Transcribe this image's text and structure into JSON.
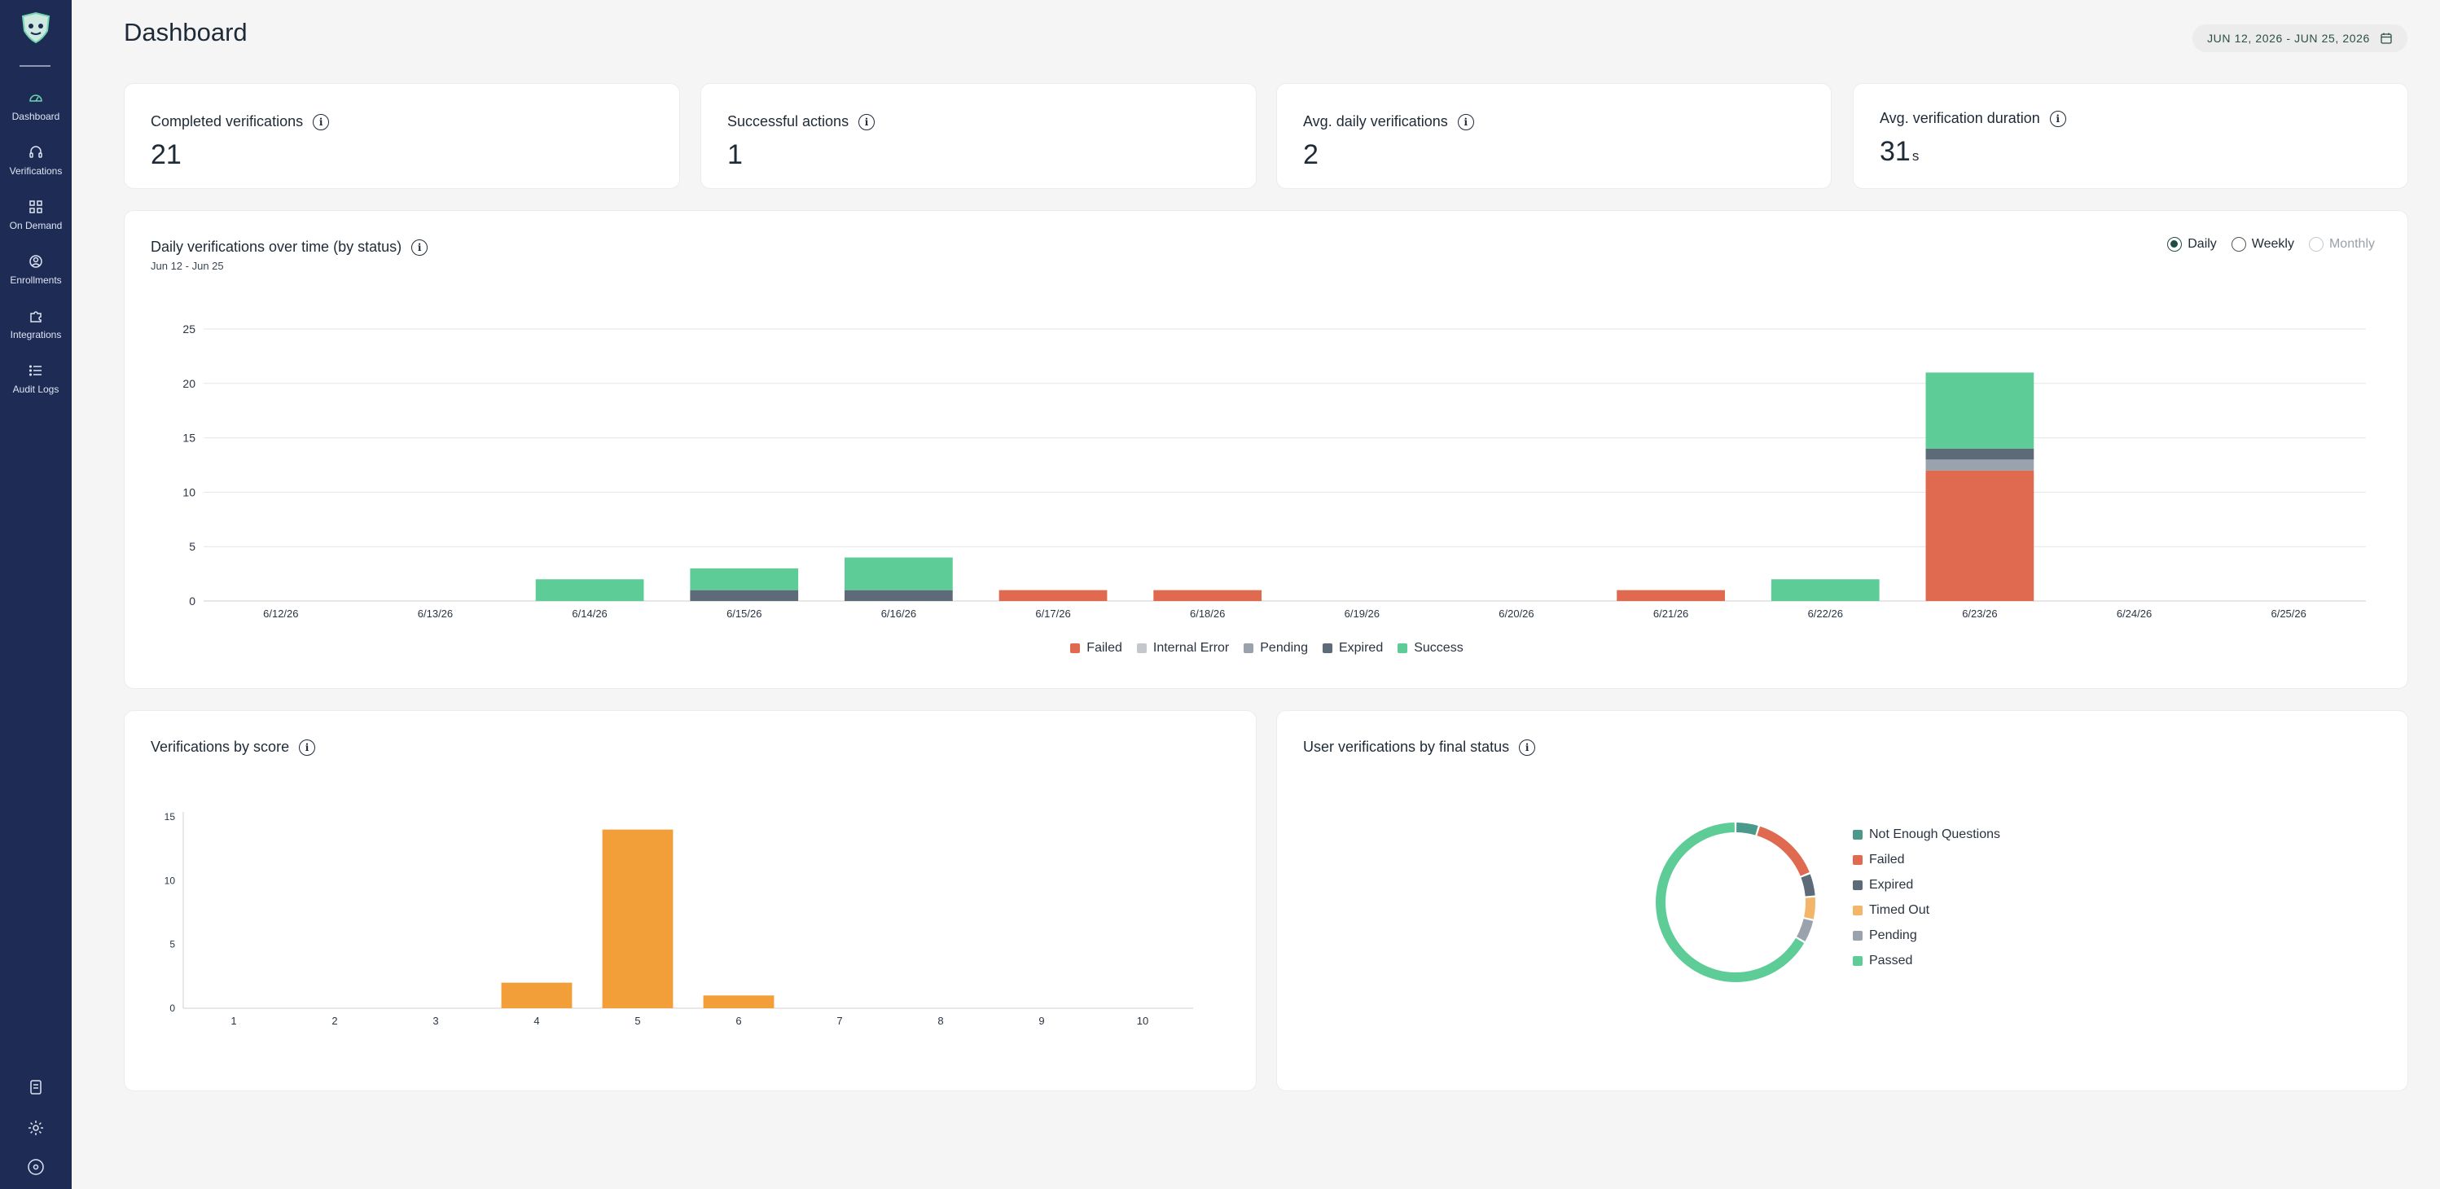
{
  "nav": {
    "items": [
      {
        "label": "Dashboard",
        "icon": "dashboard-gauge-icon"
      },
      {
        "label": "Verifications",
        "icon": "headset-icon"
      },
      {
        "label": "On Demand",
        "icon": "grid-icon"
      },
      {
        "label": "Enrollments",
        "icon": "user-circle-icon"
      },
      {
        "label": "Integrations",
        "icon": "puzzle-icon"
      },
      {
        "label": "Audit Logs",
        "icon": "list-icon"
      }
    ],
    "bottom_icons": [
      "document-icon",
      "gear-icon",
      "account-icon"
    ]
  },
  "header": {
    "title": "Dashboard",
    "date_range": "JUN 12, 2026 - JUN 25, 2026"
  },
  "kpis": [
    {
      "label": "Completed verifications",
      "value": "21",
      "unit": ""
    },
    {
      "label": "Successful actions",
      "value": "1",
      "unit": ""
    },
    {
      "label": "Avg. daily verifications",
      "value": "2",
      "unit": ""
    },
    {
      "label": "Avg. verification duration",
      "value": "31",
      "unit": "s"
    }
  ],
  "daily_chart": {
    "title": "Daily verifications over time (by status)",
    "subtitle": "Jun 12 - Jun 25",
    "period_options": [
      {
        "label": "Daily",
        "state": "checked"
      },
      {
        "label": "Weekly",
        "state": "unchecked"
      },
      {
        "label": "Monthly",
        "state": "disabled"
      }
    ]
  },
  "score_chart": {
    "title": "Verifications by score"
  },
  "status_chart": {
    "title": "User verifications by final status"
  },
  "colors": {
    "failed": "#e06a4f",
    "internal_error": "#c4c7cb",
    "pending": "#9aa3ad",
    "expired": "#5d6b78",
    "success": "#5ecc96",
    "score_bar": "#f29e39",
    "not_enough_questions": "#4a9a8c",
    "timed_out": "#f3b56a",
    "accent": "#1d2b55"
  },
  "chart_data": [
    {
      "type": "bar",
      "stacked": true,
      "categories": [
        "6/12/26",
        "6/13/26",
        "6/14/26",
        "6/15/26",
        "6/16/26",
        "6/17/26",
        "6/18/26",
        "6/19/26",
        "6/20/26",
        "6/21/26",
        "6/22/26",
        "6/23/26",
        "6/24/26",
        "6/25/26"
      ],
      "series": [
        {
          "name": "Failed",
          "color": "#e06a4f",
          "values": [
            0,
            0,
            0,
            0,
            0,
            1,
            1,
            0,
            0,
            1,
            0,
            12,
            0,
            0
          ]
        },
        {
          "name": "Internal Error",
          "color": "#c4c7cb",
          "values": [
            0,
            0,
            0,
            0,
            0,
            0,
            0,
            0,
            0,
            0,
            0,
            0,
            0,
            0
          ]
        },
        {
          "name": "Pending",
          "color": "#9aa3ad",
          "values": [
            0,
            0,
            0,
            0,
            0,
            0,
            0,
            0,
            0,
            0,
            0,
            1,
            0,
            0
          ]
        },
        {
          "name": "Expired",
          "color": "#5d6b78",
          "values": [
            0,
            0,
            0,
            1,
            1,
            0,
            0,
            0,
            0,
            0,
            0,
            1,
            0,
            0
          ]
        },
        {
          "name": "Success",
          "color": "#5ecc96",
          "values": [
            0,
            0,
            2,
            2,
            3,
            0,
            0,
            0,
            0,
            0,
            2,
            7,
            0,
            0
          ]
        }
      ],
      "ylim": [
        0,
        25
      ],
      "yticks": [
        0,
        5,
        10,
        15,
        20,
        25
      ],
      "grid": true,
      "legend": "bottom-center"
    },
    {
      "type": "bar",
      "categories": [
        "1",
        "2",
        "3",
        "4",
        "5",
        "6",
        "7",
        "8",
        "9",
        "10"
      ],
      "values": [
        0,
        0,
        0,
        2,
        14,
        1,
        0,
        0,
        0,
        0
      ],
      "ylim": [
        0,
        15
      ],
      "yticks": [
        0,
        5,
        10,
        15
      ],
      "grid": false
    },
    {
      "type": "pie",
      "donut": true,
      "labels": [
        "Not Enough Questions",
        "Failed",
        "Expired",
        "Timed Out",
        "Pending",
        "Passed"
      ],
      "colors": [
        "#4a9a8c",
        "#e06a4f",
        "#5d6b78",
        "#f3b56a",
        "#9aa3ad",
        "#5ecc96"
      ],
      "values": [
        1,
        3,
        1,
        1,
        1,
        14
      ],
      "legend": "right"
    }
  ]
}
